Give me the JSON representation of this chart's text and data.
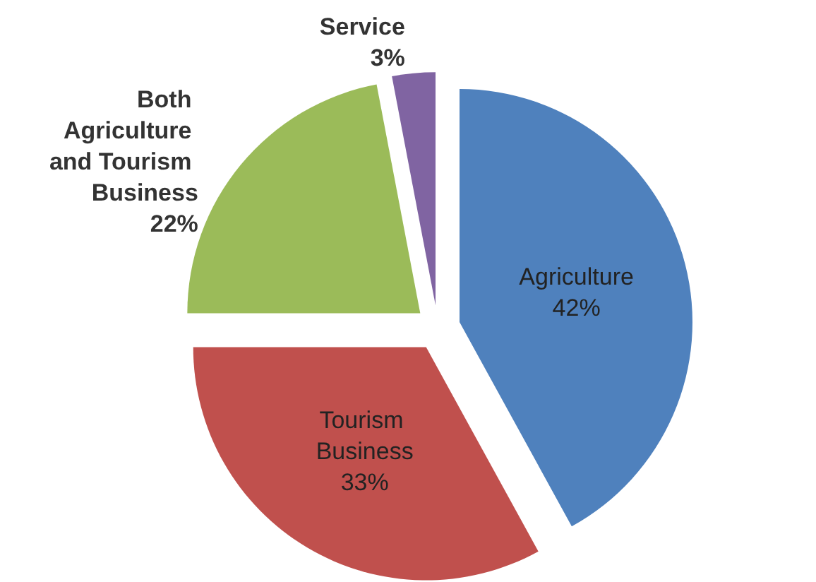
{
  "chart_data": {
    "type": "pie",
    "categories": [
      "Agriculture",
      "Tourism Business",
      "Both Agriculture and Tourism Business",
      "Service"
    ],
    "values": [
      42,
      33,
      22,
      3
    ],
    "colors": [
      "#4f81bd",
      "#c0504d",
      "#9bbb59",
      "#8064a2"
    ],
    "value_labels": [
      "42%",
      "33%",
      "22%",
      "3%"
    ],
    "legend": false
  }
}
